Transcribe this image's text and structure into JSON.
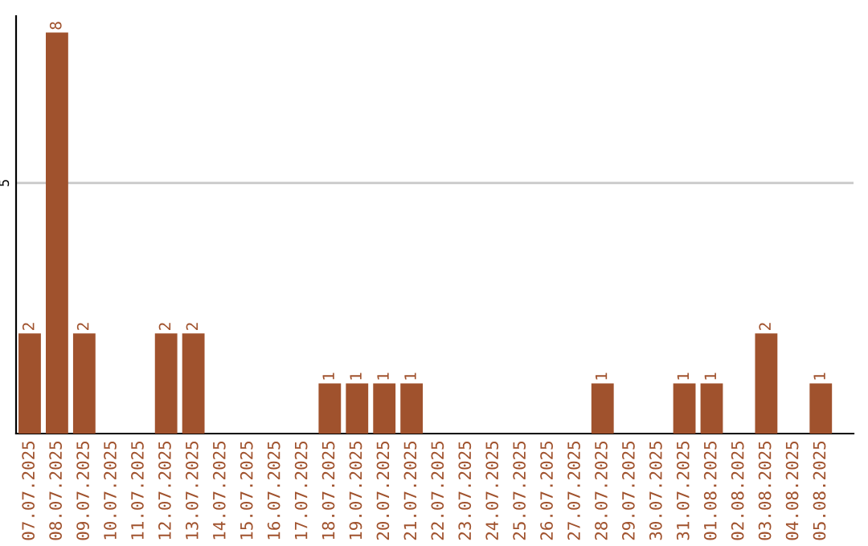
{
  "chart_data": {
    "type": "bar",
    "categories": [
      "07.07.2025",
      "08.07.2025",
      "09.07.2025",
      "10.07.2025",
      "11.07.2025",
      "12.07.2025",
      "13.07.2025",
      "14.07.2025",
      "15.07.2025",
      "16.07.2025",
      "17.07.2025",
      "18.07.2025",
      "19.07.2025",
      "20.07.2025",
      "21.07.2025",
      "22.07.2025",
      "23.07.2025",
      "24.07.2025",
      "25.07.2025",
      "26.07.2025",
      "27.07.2025",
      "28.07.2025",
      "29.07.2025",
      "30.07.2025",
      "31.07.2025",
      "01.08.2025",
      "02.08.2025",
      "03.08.2025",
      "04.08.2025",
      "05.08.2025"
    ],
    "values": [
      2,
      8,
      2,
      0,
      0,
      2,
      2,
      0,
      0,
      0,
      0,
      1,
      1,
      1,
      1,
      0,
      0,
      0,
      0,
      0,
      0,
      1,
      0,
      0,
      1,
      1,
      0,
      2,
      0,
      1
    ],
    "value_labels": [
      "2",
      "8",
      "2",
      null,
      null,
      "2",
      "2",
      null,
      null,
      null,
      null,
      "1",
      "1",
      "1",
      "1",
      null,
      null,
      null,
      null,
      null,
      null,
      "1",
      null,
      null,
      "1",
      "1",
      null,
      "2",
      null,
      "1"
    ],
    "color": "#a0522d",
    "ylim": [
      0,
      8.33
    ],
    "yticks": [
      5
    ],
    "grid": "y",
    "legend": false
  }
}
